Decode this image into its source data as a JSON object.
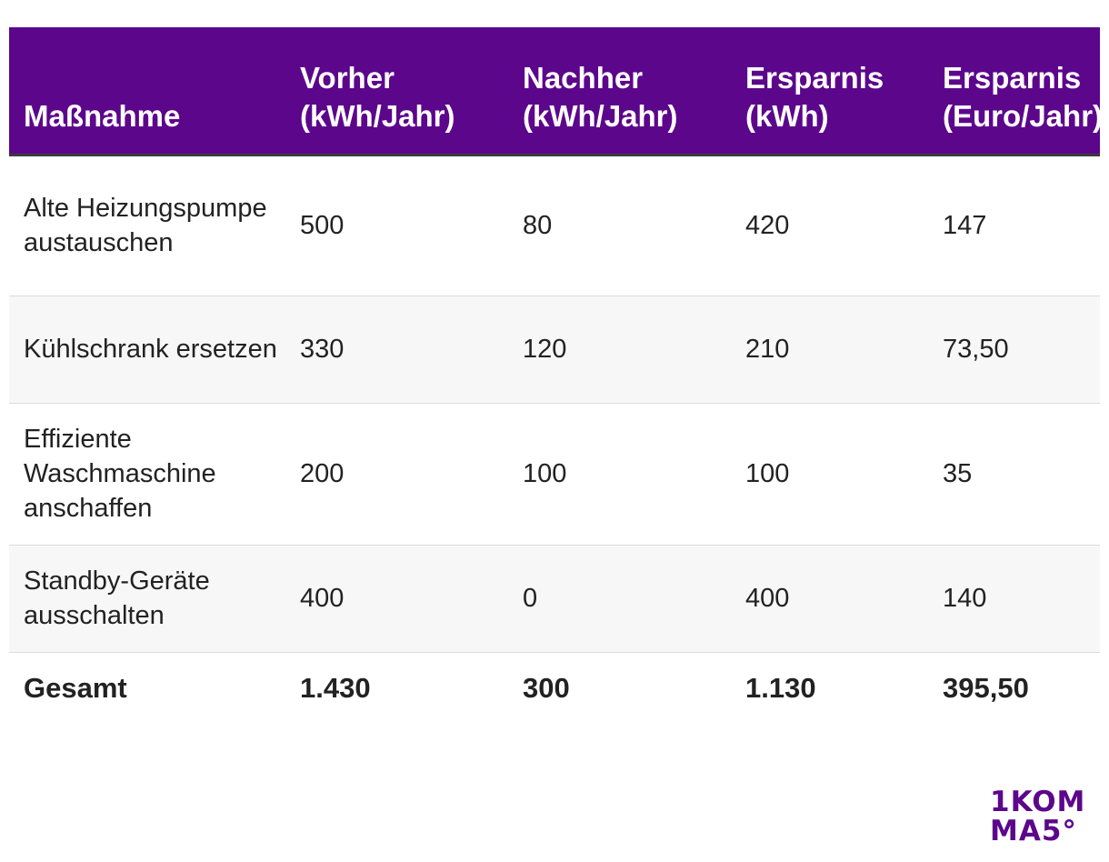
{
  "table": {
    "headers": [
      "Maßnahme",
      "Vorher (kWh/Jahr)",
      "Nachher (kWh/Jahr)",
      "Ersparnis (kWh)",
      "Ersparnis (Euro/Jahr)"
    ],
    "rows": [
      [
        "Alte Heizungspumpe austauschen",
        "500",
        "80",
        "420",
        "147"
      ],
      [
        "Kühlschrank ersetzen",
        "330",
        "120",
        "210",
        "73,50"
      ],
      [
        "Effiziente Waschmaschine anschaffen",
        "200",
        "100",
        "100",
        "35"
      ],
      [
        "Standby-Geräte ausschalten",
        "400",
        "0",
        "400",
        "140"
      ]
    ],
    "total": [
      "Gesamt",
      "1.430",
      "300",
      "1.130",
      "395,50"
    ]
  },
  "logo": {
    "line1": "1KOM",
    "line2": "MA5°"
  },
  "colors": {
    "header_bg": "#5c068c",
    "header_text": "#ffffff",
    "row_alt_bg": "#f7f7f7",
    "logo": "#5c068c"
  }
}
